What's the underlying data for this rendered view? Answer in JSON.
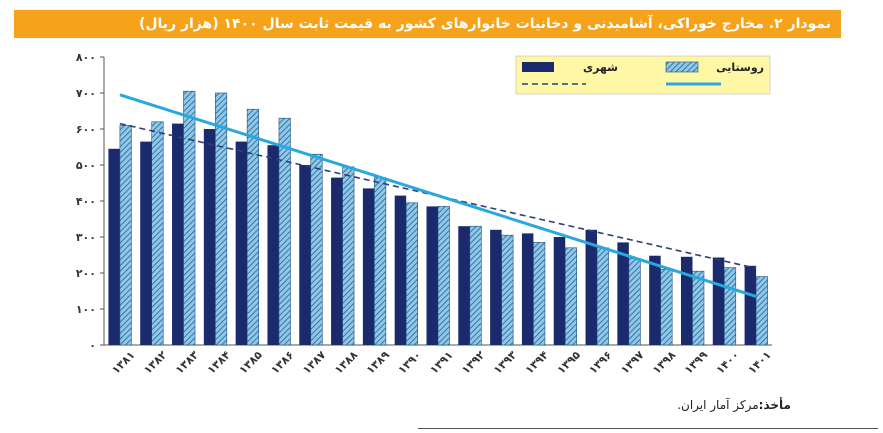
{
  "title": "نمودار ۲. مخارج خوراکی، آشامیدنی و دخانیات خانوارهای کشور به قیمت ثابت سال ۱۴۰۰ (هزار ریال)",
  "source": {
    "label": "مأخذ:",
    "text": "مرکز آمار ایران."
  },
  "colors": {
    "title_bg": "#f7a21b",
    "urban": "#1a2a6c",
    "rural_fill": "#8ec8ea",
    "rural_hatch": "#2a5d8a",
    "urban_trend": "#2f3f7a",
    "rural_trend": "#29a8e0",
    "legend_bg": "#fdf7a6"
  },
  "chart_data": {
    "type": "bar",
    "categories": [
      "۱۳۸۱",
      "۱۳۸۲",
      "۱۳۸۳",
      "۱۳۸۴",
      "۱۳۸۵",
      "۱۳۸۶",
      "۱۳۸۷",
      "۱۳۸۸",
      "۱۳۸۹",
      "۱۳۹۰",
      "۱۳۹۱",
      "۱۳۹۲",
      "۱۳۹۳",
      "۱۳۹۴",
      "۱۳۹۵",
      "۱۳۹۶",
      "۱۳۹۷",
      "۱۳۹۸",
      "۱۳۹۹",
      "۱۴۰۰",
      "۱۴۰۱"
    ],
    "series": [
      {
        "name": "شهری",
        "values": [
          545,
          565,
          615,
          600,
          565,
          555,
          500,
          465,
          435,
          415,
          385,
          330,
          320,
          310,
          300,
          320,
          285,
          248,
          245,
          243,
          220
        ]
      },
      {
        "name": "روستایی",
        "values": [
          610,
          620,
          705,
          700,
          655,
          630,
          530,
          495,
          465,
          395,
          385,
          330,
          305,
          285,
          270,
          270,
          240,
          210,
          205,
          215,
          190
        ]
      }
    ],
    "trendlines": [
      {
        "series": "شهری",
        "style": "dashed",
        "start": 615,
        "end": 213
      },
      {
        "series": "روستایی",
        "style": "solid",
        "start": 695,
        "end": 135
      }
    ],
    "yticks": [
      "۰",
      "۱۰۰",
      "۲۰۰",
      "۳۰۰",
      "۴۰۰",
      "۵۰۰",
      "۶۰۰",
      "۷۰۰",
      "۸۰۰"
    ],
    "ylim": [
      0,
      800
    ],
    "legend_position": "top-right"
  }
}
